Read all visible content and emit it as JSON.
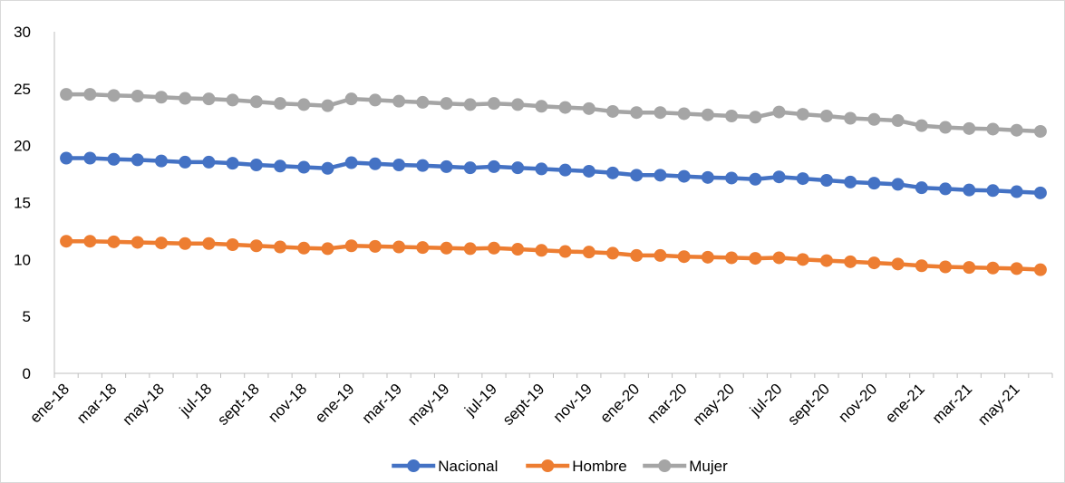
{
  "chart_data": {
    "type": "line",
    "title": "",
    "xlabel": "",
    "ylabel": "",
    "ylim": [
      0,
      30
    ],
    "yticks": [
      0,
      5,
      10,
      15,
      20,
      25,
      30
    ],
    "grid": false,
    "legend_position": "bottom",
    "categories": [
      "ene-18",
      "feb-18",
      "mar-18",
      "abr-18",
      "may-18",
      "jun-18",
      "jul-18",
      "ago-18",
      "sept-18",
      "oct-18",
      "nov-18",
      "dic-18",
      "ene-19",
      "feb-19",
      "mar-19",
      "abr-19",
      "may-19",
      "jun-19",
      "jul-19",
      "ago-19",
      "sept-19",
      "oct-19",
      "nov-19",
      "dic-19",
      "ene-20",
      "feb-20",
      "mar-20",
      "abr-20",
      "may-20",
      "jun-20",
      "jul-20",
      "ago-20",
      "sept-20",
      "oct-20",
      "nov-20",
      "dic-20",
      "ene-21",
      "feb-21",
      "mar-21",
      "abr-21",
      "may-21",
      "jun-21"
    ],
    "tick_labels": [
      "ene-18",
      "mar-18",
      "may-18",
      "jul-18",
      "sept-18",
      "nov-18",
      "ene-19",
      "mar-19",
      "may-19",
      "jul-19",
      "sept-19",
      "nov-19",
      "ene-20",
      "mar-20",
      "may-20",
      "jul-20",
      "sept-20",
      "nov-20",
      "ene-21",
      "mar-21",
      "may-21"
    ],
    "series": [
      {
        "name": "Nacional",
        "color": "#4472c4",
        "values": [
          18.9,
          18.9,
          18.8,
          18.75,
          18.65,
          18.55,
          18.55,
          18.45,
          18.3,
          18.2,
          18.1,
          18.0,
          18.5,
          18.4,
          18.3,
          18.25,
          18.15,
          18.05,
          18.15,
          18.05,
          17.95,
          17.85,
          17.75,
          17.6,
          17.4,
          17.4,
          17.3,
          17.2,
          17.15,
          17.05,
          17.25,
          17.1,
          16.95,
          16.8,
          16.7,
          16.6,
          16.3,
          16.2,
          16.1,
          16.05,
          15.95,
          15.85
        ]
      },
      {
        "name": "Hombre",
        "color": "#ed7d31",
        "values": [
          11.6,
          11.6,
          11.55,
          11.5,
          11.45,
          11.4,
          11.4,
          11.3,
          11.2,
          11.1,
          11.0,
          10.95,
          11.2,
          11.15,
          11.1,
          11.05,
          11.0,
          10.95,
          11.0,
          10.9,
          10.8,
          10.7,
          10.65,
          10.55,
          10.35,
          10.35,
          10.25,
          10.2,
          10.15,
          10.1,
          10.15,
          10.0,
          9.9,
          9.8,
          9.7,
          9.6,
          9.45,
          9.35,
          9.3,
          9.25,
          9.2,
          9.1
        ]
      },
      {
        "name": "Mujer",
        "color": "#a5a5a5",
        "values": [
          24.5,
          24.5,
          24.4,
          24.35,
          24.25,
          24.15,
          24.1,
          24.0,
          23.85,
          23.7,
          23.6,
          23.5,
          24.1,
          24.0,
          23.9,
          23.8,
          23.7,
          23.6,
          23.7,
          23.6,
          23.45,
          23.35,
          23.25,
          23.0,
          22.9,
          22.9,
          22.8,
          22.7,
          22.6,
          22.5,
          22.95,
          22.75,
          22.6,
          22.4,
          22.3,
          22.2,
          21.75,
          21.6,
          21.5,
          21.45,
          21.35,
          21.25
        ]
      }
    ]
  }
}
